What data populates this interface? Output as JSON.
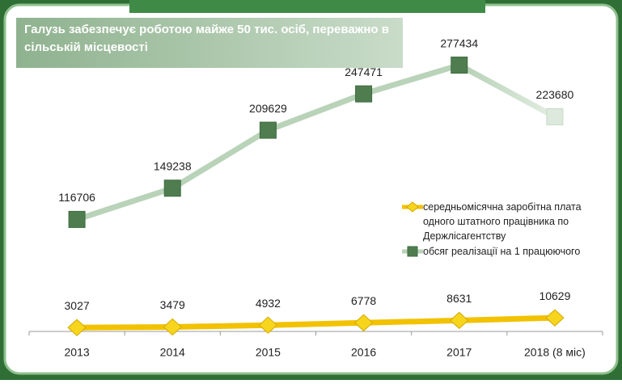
{
  "chart_data": {
    "type": "line",
    "header": "Галузь  забезпечує роботою  майже 50 тис. осіб, переважно в сільській місцевості",
    "categories": [
      "2013",
      "2014",
      "2015",
      "2016",
      "2017",
      "2018 (8 міс)"
    ],
    "series": [
      {
        "name": "середньомісячна заробітна плата одного штатного працівника по Держлісагентству",
        "color": "#f2c200",
        "marker_color": "#f7d51c",
        "axis": "y",
        "values": [
          3027,
          3479,
          4932,
          6778,
          8631,
          10629
        ]
      },
      {
        "name": "обсяг реалізації на 1 працюючого",
        "color": "#b9d3b9",
        "marker_color": "#4f7d50",
        "axis": "y2",
        "values": [
          116706,
          149238,
          209629,
          247471,
          277434,
          223680
        ]
      }
    ],
    "ylim": [
      0,
      240000
    ],
    "y2lim": [
      0,
      320000
    ],
    "legend": "right"
  }
}
